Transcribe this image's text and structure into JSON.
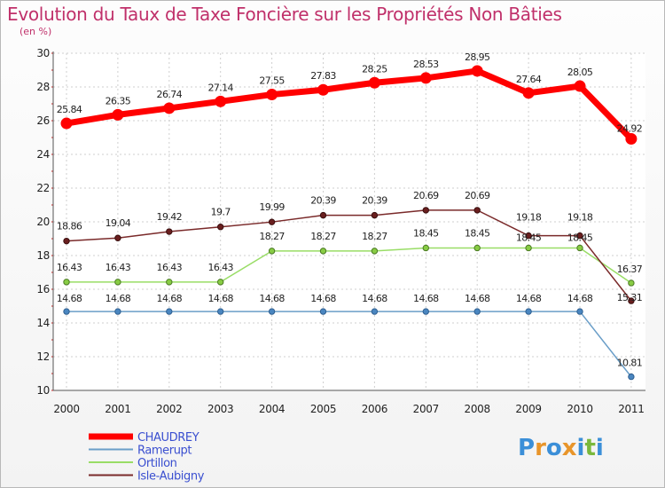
{
  "chart_data": {
    "type": "line",
    "title": "Evolution du Taux de Taxe Foncière sur les Propriétés Non Bâties",
    "subtitle": "(en %)",
    "xlabel": "",
    "ylabel": "(en %)",
    "ylim": [
      10,
      30
    ],
    "y_ticks": [
      10,
      12,
      14,
      16,
      18,
      20,
      22,
      24,
      26,
      28,
      30
    ],
    "categories": [
      "2000",
      "2001",
      "2002",
      "2003",
      "2004",
      "2005",
      "2006",
      "2007",
      "2008",
      "2009",
      "2010",
      "2011"
    ],
    "grid": true,
    "legend_position": "bottom-left",
    "series": [
      {
        "name": "CHAUDREY",
        "color": "#ff0000",
        "values": [
          25.84,
          26.35,
          26.74,
          27.14,
          27.55,
          27.83,
          28.25,
          28.53,
          28.95,
          27.64,
          28.05,
          24.92
        ],
        "labels": [
          "25.84",
          "26.35",
          "26.74",
          "27.14",
          "27.55",
          "27.83",
          "28.25",
          "28.53",
          "28.95",
          "27.64",
          "28.05",
          "24.92"
        ]
      },
      {
        "name": "Ramerupt",
        "color": "#6a9ec8",
        "values": [
          14.68,
          14.68,
          14.68,
          14.68,
          14.68,
          14.68,
          14.68,
          14.68,
          14.68,
          14.68,
          14.68,
          10.81
        ],
        "labels": [
          "14.68",
          "14.68",
          "14.68",
          "14.68",
          "14.68",
          "14.68",
          "14.68",
          "14.68",
          "14.68",
          "14.68",
          "14.68",
          "10.81"
        ]
      },
      {
        "name": "Ortillon",
        "color": "#99dd66",
        "values": [
          16.43,
          16.43,
          16.43,
          16.43,
          18.27,
          18.27,
          18.27,
          18.45,
          18.45,
          18.45,
          18.45,
          16.37
        ],
        "labels": [
          "16.43",
          "16.43",
          "16.43",
          "16.43",
          "18.27",
          "18.27",
          "18.27",
          "18.45",
          "18.45",
          "18.45",
          "18.45",
          "16.37"
        ]
      },
      {
        "name": "Isle-Aubigny",
        "color": "#7a2a2a",
        "values": [
          18.86,
          19.04,
          19.42,
          19.7,
          19.99,
          20.39,
          20.39,
          20.69,
          20.69,
          19.18,
          19.18,
          15.31
        ],
        "labels": [
          "18.86",
          "19.04",
          "19.42",
          "19.7",
          "19.99",
          "20.39",
          "20.39",
          "20.69",
          "20.69",
          "19.18",
          "19.18",
          "15.31"
        ]
      }
    ]
  },
  "logo": {
    "letters": [
      "P",
      "r",
      "o",
      "x",
      "i",
      "t",
      "i"
    ],
    "colors": [
      "#3b8fd8",
      "#e8952a",
      "#3b8fd8",
      "#e8952a",
      "#3b8fd8",
      "#7ab83c",
      "#3b8fd8"
    ]
  }
}
